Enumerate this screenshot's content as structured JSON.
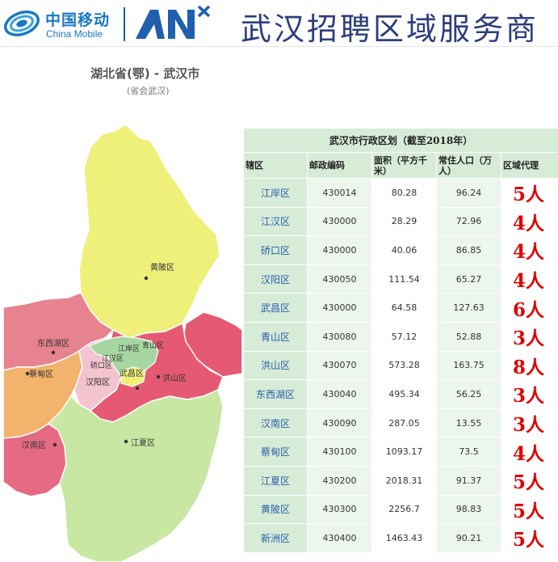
{
  "header": {
    "logo_cn": "中国移动",
    "logo_en": "China Mobile",
    "title": "武汉招聘区域服务商"
  },
  "map": {
    "title": "湖北省(鄂) - 武汉市",
    "subtitle": "(省会武汉)",
    "labels": {
      "huangpi": "黄陂区",
      "dongxihu": "东西湖区",
      "caidian": "蔡甸区",
      "hanyang": "汉阳区",
      "qiaokou": "硚口区",
      "jianghan": "江汉区",
      "jiangan": "江岸区",
      "qingshan": "青山区",
      "wuchang": "武昌区",
      "hongshan": "洪山区",
      "hannan": "汉南区",
      "jiangxia": "江夏区"
    }
  },
  "table": {
    "caption": "武汉市行政区划（截至2018年）",
    "headers": [
      "辖区",
      "邮政编码",
      "面积（平方千米）",
      "常住人口（万人）",
      "区域代理"
    ],
    "rows": [
      [
        "江岸区",
        "430014",
        "80.28",
        "96.24",
        "5人"
      ],
      [
        "江汉区",
        "430000",
        "28.29",
        "72.96",
        "4人"
      ],
      [
        "硚口区",
        "430000",
        "40.06",
        "86.85",
        "4人"
      ],
      [
        "汉阳区",
        "430050",
        "111.54",
        "65.27",
        "4人"
      ],
      [
        "武昌区",
        "430000",
        "64.58",
        "127.63",
        "6人"
      ],
      [
        "青山区",
        "430080",
        "57.12",
        "52.88",
        "3人"
      ],
      [
        "洪山区",
        "430070",
        "573.28",
        "163.75",
        "8人"
      ],
      [
        "东西湖区",
        "430040",
        "495.34",
        "56.25",
        "3人"
      ],
      [
        "汉南区",
        "430090",
        "287.05",
        "13.55",
        "3人"
      ],
      [
        "蔡甸区",
        "430100",
        "1093.17",
        "73.5",
        "4人"
      ],
      [
        "江夏区",
        "430200",
        "2018.31",
        "91.37",
        "5人"
      ],
      [
        "黄陂区",
        "430300",
        "2256.7",
        "98.83",
        "5人"
      ],
      [
        "新洲区",
        "430400",
        "1463.43",
        "90.21",
        "5人"
      ]
    ]
  },
  "colors": {
    "brand_blue": "#1a79c2",
    "title_navy": "#2d3d7c",
    "table_green": "#d7ecd7",
    "agent_red": "#e00000",
    "huangpi": "#eef07a",
    "dongxihu": "#e6838f",
    "caidian": "#f2b36c",
    "hannan": "#e66a84",
    "jiangxia": "#c7e7a3",
    "hongshan": "#e55a72",
    "core_districts": "#a7d7a0"
  }
}
